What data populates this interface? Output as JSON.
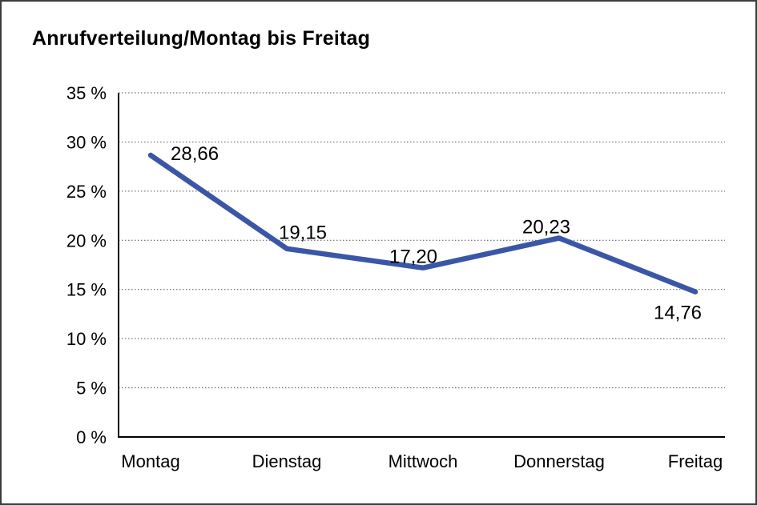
{
  "title": "Anrufverteilung/Montag bis Freitag",
  "chart_data": {
    "type": "line",
    "title": "Anrufverteilung/Montag bis Freitag",
    "categories": [
      "Montag",
      "Dienstag",
      "Mittwoch",
      "Donnerstag",
      "Freitag"
    ],
    "series": [
      {
        "name": "Anrufverteilung",
        "color": "#3a57a7",
        "values": [
          28.66,
          19.15,
          17.2,
          20.23,
          14.76
        ],
        "value_labels": [
          "28,66",
          "19,15",
          "17,20",
          "20,23",
          "14,76"
        ]
      }
    ],
    "xlabel": "",
    "ylabel": "",
    "ylim": [
      0,
      35
    ],
    "y_ticks": [
      {
        "value": 35,
        "label": "35 %"
      },
      {
        "value": 30,
        "label": "30 %"
      },
      {
        "value": 25,
        "label": "25 %"
      },
      {
        "value": 20,
        "label": "20 %"
      },
      {
        "value": 15,
        "label": "15 %"
      },
      {
        "value": 10,
        "label": "10 %"
      },
      {
        "value": 5,
        "label": "5 %"
      },
      {
        "value": 0,
        "label": "0 %"
      }
    ],
    "grid": "horizontal-dotted",
    "legend_position": "none",
    "colors": {
      "line": "#3a57a7",
      "grid": "#555555",
      "axis": "#000000",
      "text": "#000000",
      "background": "#ffffff",
      "frame_border": "#3c3c3c"
    }
  }
}
